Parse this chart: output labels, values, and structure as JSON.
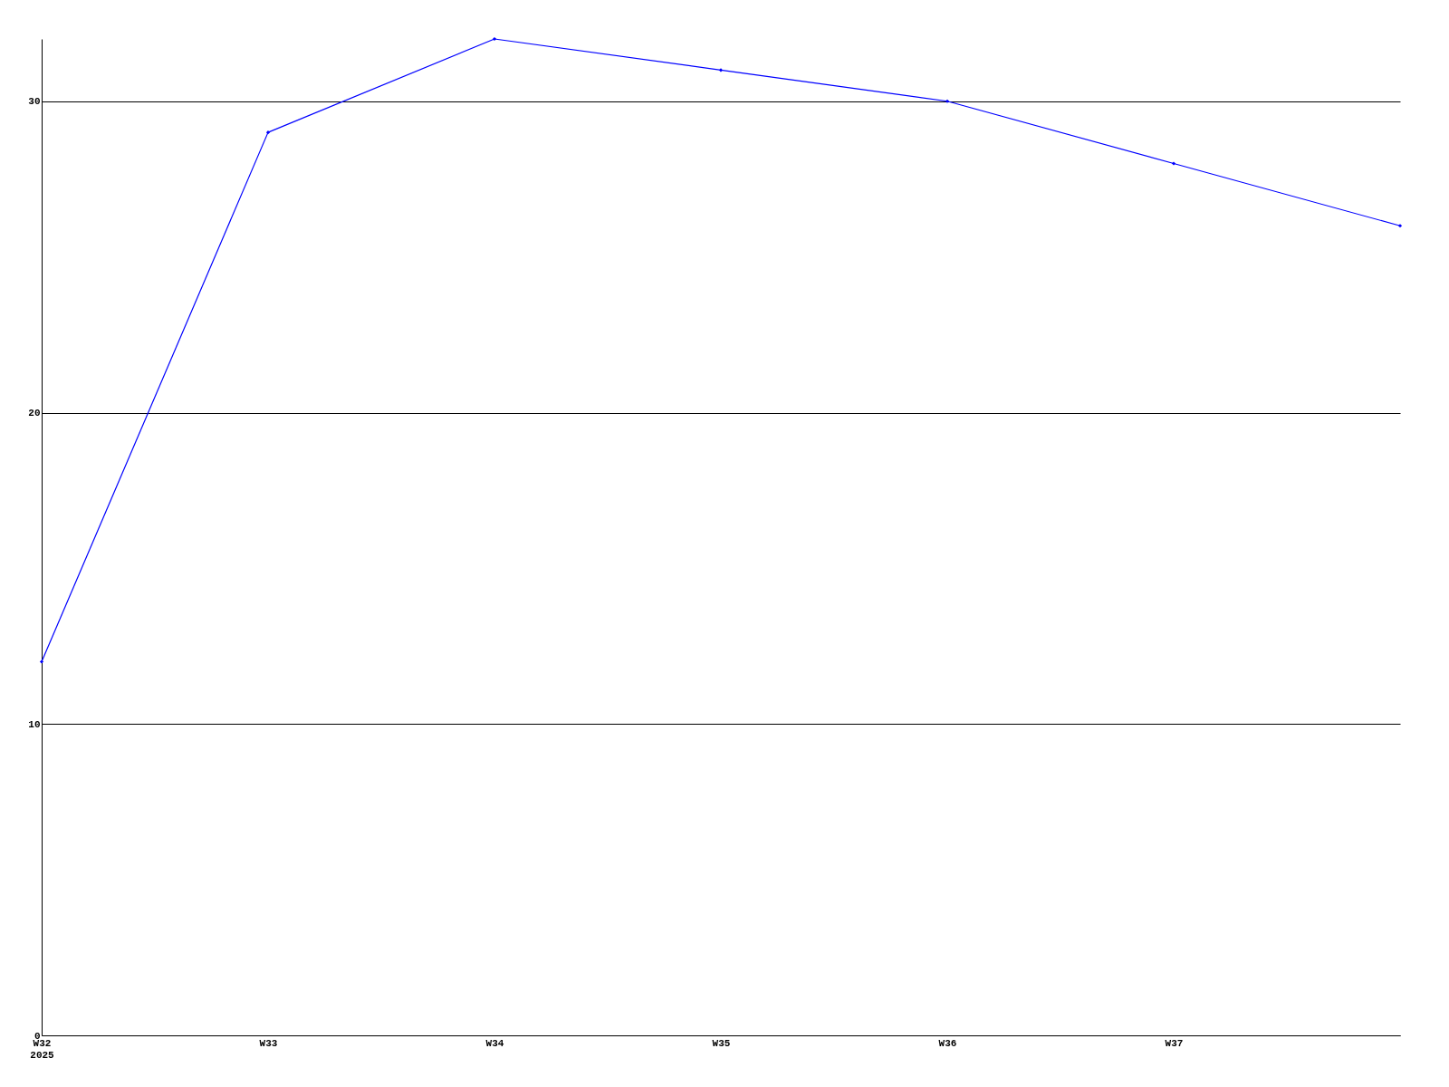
{
  "chart_data": {
    "type": "line",
    "categories": [
      "W32\n2025",
      "W33",
      "W34",
      "W35",
      "W36",
      "W37",
      null
    ],
    "series": [
      {
        "color": "#0000ff",
        "values": [
          12,
          29,
          32,
          31,
          30,
          28,
          26
        ]
      }
    ],
    "ylim": [
      0,
      32
    ],
    "yticks": [
      0,
      10,
      20,
      30
    ],
    "grid": "y",
    "marker": "diamond",
    "line_style": "solid"
  }
}
